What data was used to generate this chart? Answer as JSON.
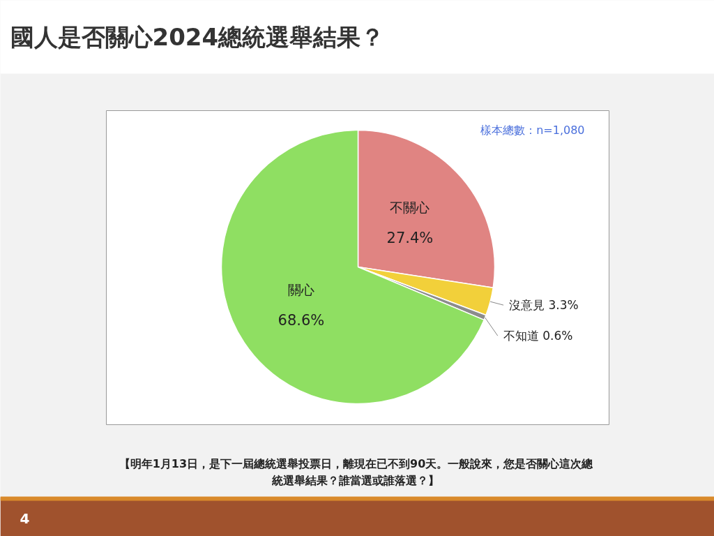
{
  "chart_data": {
    "type": "pie",
    "title": "國人是否關心2024總統選舉結果？",
    "categories": [
      "不關心",
      "沒意見",
      "不知道",
      "關心"
    ],
    "values": [
      27.4,
      3.3,
      0.6,
      68.6
    ],
    "colors": [
      "#e08482",
      "#f2d03a",
      "#8c8c8c",
      "#8fdf62"
    ],
    "value_labels": [
      "27.4%",
      "3.3%",
      "0.6%",
      "68.6%"
    ],
    "annotations": [
      "樣本總數：n=1,080",
      "【明年1月13日，是下一屆總統選舉投票日，離現在已不到90天。一般說來，您是否關心這次總統選舉結果？誰當選或誰落選？】",
      "4"
    ]
  }
}
